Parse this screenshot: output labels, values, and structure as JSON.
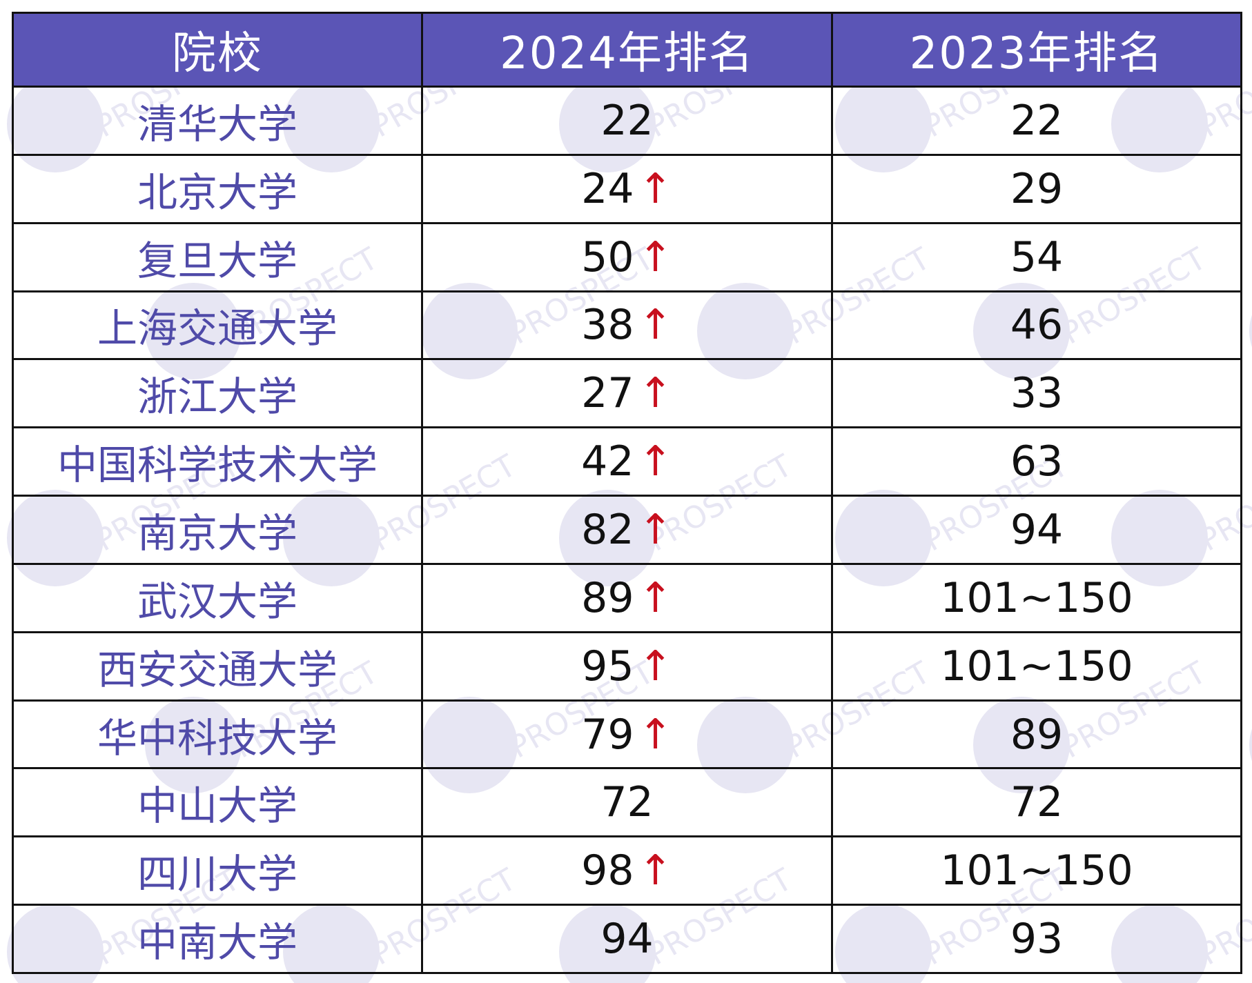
{
  "watermark": {
    "text": "PROSPECT",
    "color": "#e7e6f3"
  },
  "colors": {
    "header_bg": "#5b55b6",
    "header_text": "#ffffff",
    "school_text": "#4f4aa8",
    "rank_text": "#111111",
    "up_arrow": "#c8101e",
    "border": "#111111"
  },
  "table": {
    "headers": [
      "院校",
      "2024年排名",
      "2023年排名"
    ],
    "up_arrow_icon": "↑",
    "rows": [
      {
        "school": "清华大学",
        "rank_2024": "22",
        "up": false,
        "rank_2023": "22"
      },
      {
        "school": "北京大学",
        "rank_2024": "24",
        "up": true,
        "rank_2023": "29"
      },
      {
        "school": "复旦大学",
        "rank_2024": "50",
        "up": true,
        "rank_2023": "54"
      },
      {
        "school": "上海交通大学",
        "rank_2024": "38",
        "up": true,
        "rank_2023": "46"
      },
      {
        "school": "浙江大学",
        "rank_2024": "27",
        "up": true,
        "rank_2023": "33"
      },
      {
        "school": "中国科学技术大学",
        "rank_2024": "42",
        "up": true,
        "rank_2023": "63"
      },
      {
        "school": "南京大学",
        "rank_2024": "82",
        "up": true,
        "rank_2023": "94"
      },
      {
        "school": "武汉大学",
        "rank_2024": "89",
        "up": true,
        "rank_2023": "101~150"
      },
      {
        "school": "西安交通大学",
        "rank_2024": "95",
        "up": true,
        "rank_2023": "101~150"
      },
      {
        "school": "华中科技大学",
        "rank_2024": "79",
        "up": true,
        "rank_2023": "89"
      },
      {
        "school": "中山大学",
        "rank_2024": "72",
        "up": false,
        "rank_2023": "72"
      },
      {
        "school": "四川大学",
        "rank_2024": "98",
        "up": true,
        "rank_2023": "101~150"
      },
      {
        "school": "中南大学",
        "rank_2024": "94",
        "up": false,
        "rank_2023": "93"
      }
    ]
  }
}
